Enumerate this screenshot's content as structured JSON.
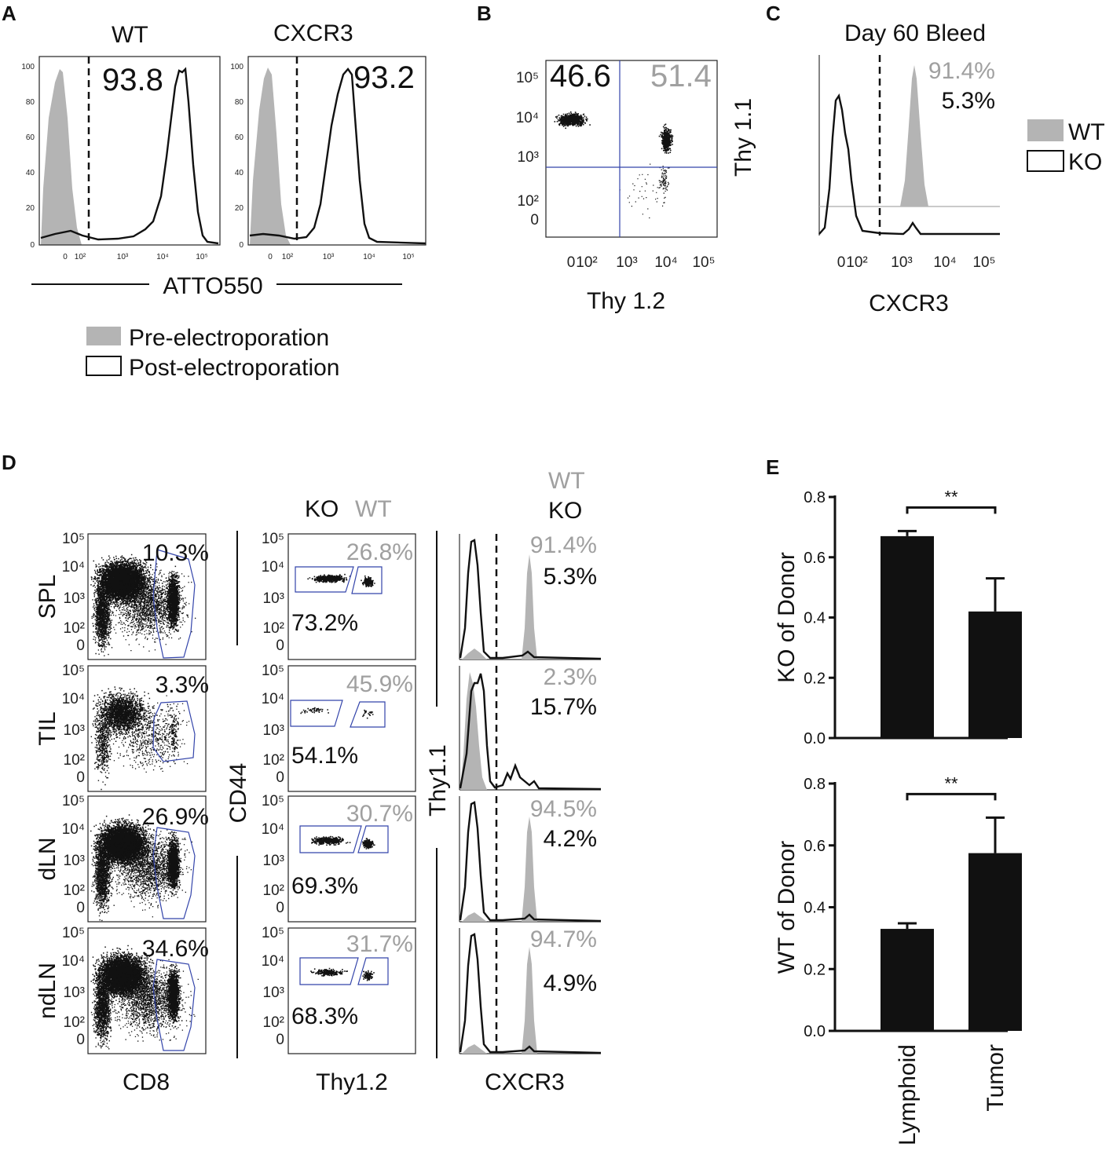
{
  "panels": {
    "A": {
      "label": "A",
      "headers": [
        "WT",
        "CXCR3"
      ],
      "values": [
        "93.8",
        "93.2"
      ],
      "axis_label": "ATTO550",
      "y_ticks": [
        "100",
        "80",
        "60",
        "40",
        "20",
        "0"
      ],
      "x_ticks": [
        "0",
        "10²",
        "10³",
        "10⁴",
        "10⁵"
      ],
      "legend": [
        "Pre-electroporation",
        "Post-electroporation"
      ]
    },
    "B": {
      "label": "B",
      "values": [
        "46.6",
        "51.4"
      ],
      "y_ticks": [
        "10⁵",
        "10⁴",
        "10³",
        "10²",
        "0"
      ],
      "x_ticks": [
        "0",
        "10²",
        "10³",
        "10⁴",
        "10⁵"
      ],
      "xlabel": "Thy 1.2",
      "ylabel": "Thy 1.1"
    },
    "C": {
      "label": "C",
      "title": "Day 60 Bleed",
      "values": [
        "91.4%",
        "5.3%"
      ],
      "x_ticks": [
        "0",
        "10²",
        "10³",
        "10⁴",
        "10⁵"
      ],
      "xlabel": "CXCR3",
      "legend": [
        "WT",
        "KO"
      ]
    },
    "D": {
      "label": "D",
      "rows": [
        "SPL",
        "TIL",
        "dLN",
        "ndLN"
      ],
      "cd8_pct": [
        "10.3%",
        "3.3%",
        "26.9%",
        "34.6%"
      ],
      "wt_pct": [
        "26.8%",
        "45.9%",
        "30.7%",
        "31.7%"
      ],
      "ko_pct": [
        "73.2%",
        "54.1%",
        "69.3%",
        "68.3%"
      ],
      "hist_wt": [
        "91.4%",
        "2.3%",
        "94.5%",
        "94.7%"
      ],
      "hist_ko": [
        "5.3%",
        "15.7%",
        "4.2%",
        "4.9%"
      ],
      "col_headers": {
        "ko": "KO",
        "wt": "WT"
      },
      "y_ticks": [
        "10⁵",
        "10⁴",
        "10³",
        "10²",
        "0"
      ],
      "xlabels": [
        "CD8",
        "Thy1.2",
        "CXCR3"
      ],
      "ylabels": [
        "CD44",
        "Thy1.1"
      ]
    },
    "E": {
      "label": "E",
      "significance": "**"
    }
  },
  "chart_data": [
    {
      "type": "bar",
      "categories": [
        "Lymphoid",
        "Tumor"
      ],
      "values": [
        0.67,
        0.42
      ],
      "errors": [
        0.017,
        0.11
      ],
      "ylabel": "KO of Donor",
      "ylim": [
        0,
        0.8
      ],
      "yticks": [
        "0.0",
        "0.2",
        "0.4",
        "0.6",
        "0.8"
      ],
      "bar_color": "#111111"
    },
    {
      "type": "bar",
      "categories": [
        "Lymphoid",
        "Tumor"
      ],
      "values": [
        0.33,
        0.575
      ],
      "errors": [
        0.018,
        0.115
      ],
      "ylabel": "WT of Donor",
      "ylim": [
        0,
        0.8
      ],
      "yticks": [
        "0.0",
        "0.2",
        "0.4",
        "0.6",
        "0.8"
      ],
      "bar_color": "#111111"
    }
  ]
}
